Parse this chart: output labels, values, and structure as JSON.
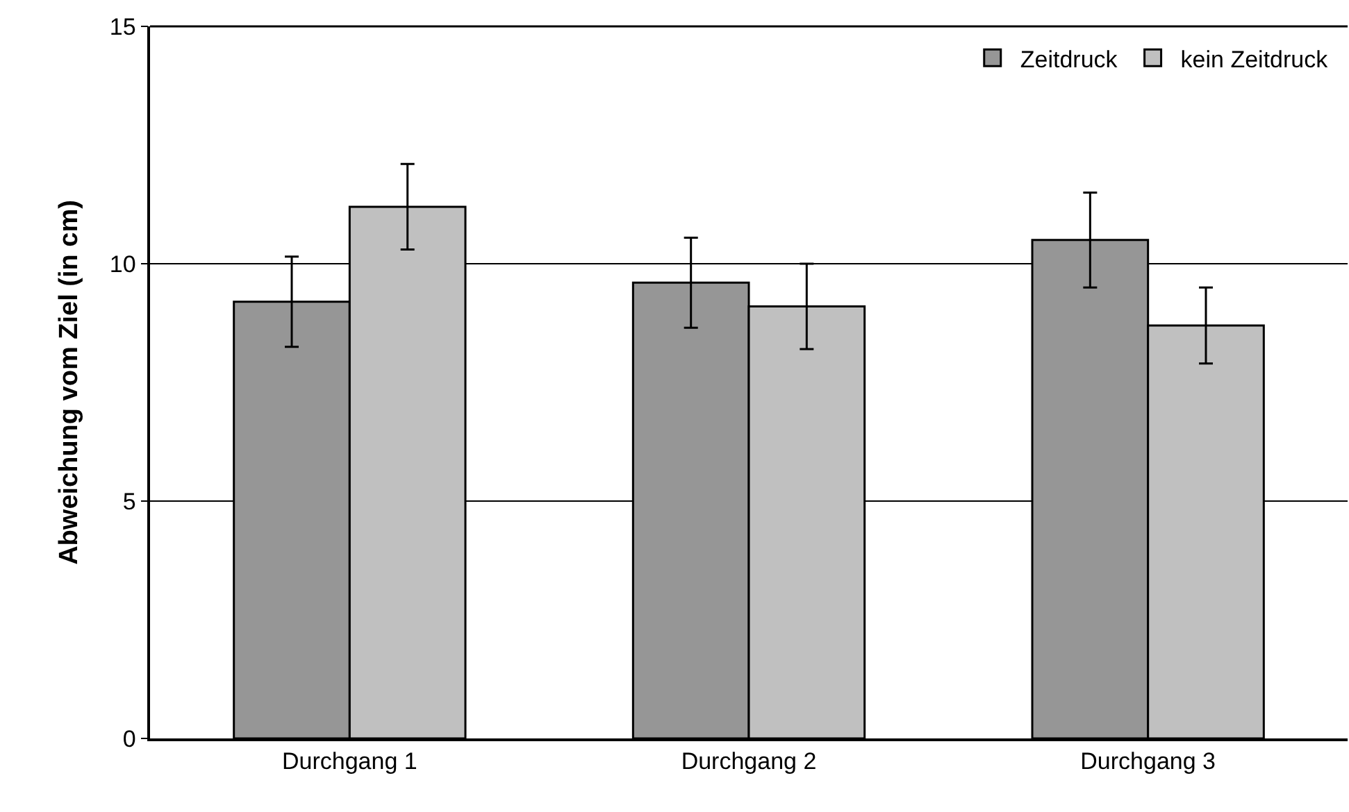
{
  "chart_data": {
    "type": "bar",
    "ylabel": "Abweichung vom Ziel (in cm)",
    "categories": [
      "Durchgang 1",
      "Durchgang 2",
      "Durchgang 3"
    ],
    "series": [
      {
        "name": "Zeitdruck",
        "color": "#969696",
        "values": [
          9.2,
          9.6,
          10.5
        ],
        "errors": [
          0.95,
          0.95,
          1.0
        ]
      },
      {
        "name": "kein Zeitdruck",
        "color": "#c0c0c0",
        "values": [
          11.2,
          9.1,
          8.7
        ],
        "errors": [
          0.9,
          0.9,
          0.8
        ]
      }
    ],
    "ylim": [
      0,
      15
    ],
    "yticks": [
      0,
      5,
      10,
      15
    ],
    "grid": "y",
    "legend": "top right"
  }
}
